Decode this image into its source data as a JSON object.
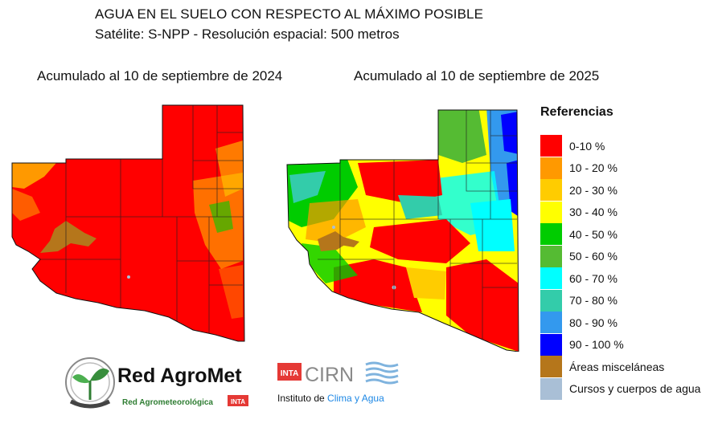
{
  "header": {
    "title": "AGUA EN EL SUELO CON RESPECTO AL MÁXIMO POSIBLE",
    "subtitle": "Satélite: S-NPP - Resolución espacial: 500 metros"
  },
  "panels": [
    {
      "label": "Acumulado al 10 de septiembre de 2024"
    },
    {
      "label": "Acumulado al 10 de septiembre de 2025"
    }
  ],
  "legend": {
    "title": "Referencias",
    "items": [
      {
        "label": "0-10 %",
        "color": "#ff0000"
      },
      {
        "label": "10 - 20 %",
        "color": "#ff9900"
      },
      {
        "label": "20 - 30 %",
        "color": "#ffcc00"
      },
      {
        "label": "30 - 40 %",
        "color": "#ffff00"
      },
      {
        "label": "40 - 50 %",
        "color": "#00cc00"
      },
      {
        "label": "50 - 60 %",
        "color": "#55bb33"
      },
      {
        "label": "60 - 70 %",
        "color": "#00ffff"
      },
      {
        "label": "70 - 80 %",
        "color": "#33ccaa"
      },
      {
        "label": "80 - 90 %",
        "color": "#3399ee"
      },
      {
        "label": "90 - 100 %",
        "color": "#0000ff"
      },
      {
        "label": "Áreas misceláneas",
        "color": "#b5761b"
      },
      {
        "label": "Cursos y cuerpos de agua",
        "color": "#a9bfd6"
      }
    ]
  },
  "logos": {
    "redagromet_name": "Red AgroMet",
    "redagromet_sub": "Red Agrometeorológica",
    "inta_badge": "INTA",
    "cirn_name": "CIRN",
    "cirn_sub_prefix": "Instituto de ",
    "cirn_sub_highlight": "Clima y Agua"
  }
}
